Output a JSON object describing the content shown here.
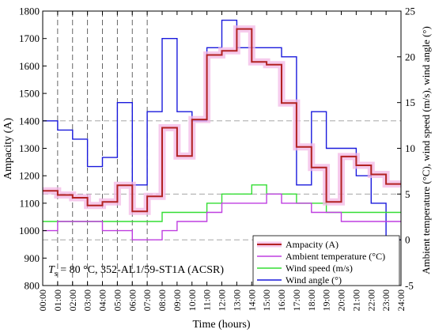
{
  "chart_data": {
    "type": "line",
    "xlabel": "Time (hours)",
    "ylabel_left": "Ampacity (A)",
    "ylabel_right": "Ambient temperature (°C), wind speed (m/s), wind angle (°)",
    "x_ticks": [
      "00:00",
      "01:00",
      "02:00",
      "03:00",
      "04:00",
      "05:00",
      "06:00",
      "07:00",
      "08:00",
      "09:00",
      "10:00",
      "11:00",
      "12:00",
      "13:00",
      "14:00",
      "15:00",
      "16:00",
      "17:00",
      "18:00",
      "19:00",
      "20:00",
      "21:00",
      "22:00",
      "23:00",
      "24:00"
    ],
    "xlim": [
      0,
      24
    ],
    "ylim_left": [
      800,
      1800
    ],
    "ylim_right": [
      -5,
      25
    ],
    "y_ticks_left": [
      800,
      900,
      1000,
      1100,
      1200,
      1300,
      1400,
      1500,
      1600,
      1700,
      1800
    ],
    "y_ticks_right": [
      -5,
      0,
      5,
      10,
      15,
      20,
      25
    ],
    "annotation": {
      "prefix": "T",
      "subscript": "s",
      "text": " = 80 °C, 352-AL1/59-ST1A (ACSR)"
    },
    "legend_position": "bottom-right",
    "dashed_vertical_at": [
      1,
      2,
      3,
      4,
      5,
      6,
      7
    ],
    "dashed_horizontal_right_at": [
      0,
      5,
      13
    ],
    "series": [
      {
        "name": "Ampacity (A)",
        "axis": "left",
        "color": "#b22222",
        "band_color": "#f3b8e6",
        "values": [
          1145,
          1130,
          1120,
          1092,
          1105,
          1165,
          1070,
          1125,
          1375,
          1272,
          1405,
          1640,
          1655,
          1735,
          1615,
          1605,
          1465,
          1305,
          1230,
          1105,
          1270,
          1238,
          1205,
          1170
        ]
      },
      {
        "name": "Ambient temperature (°C)",
        "axis": "right",
        "color": "#bf3fe0",
        "values": [
          1,
          2,
          2,
          2,
          1,
          1,
          0,
          0,
          1,
          2,
          2,
          3,
          4,
          4,
          4,
          5,
          4,
          4,
          3,
          3,
          2,
          2,
          2,
          2
        ]
      },
      {
        "name": "Wind speed (m/s)",
        "axis": "right",
        "color": "#33dd33",
        "values": [
          2,
          2,
          2,
          2,
          2,
          2,
          2,
          2,
          3,
          3,
          3,
          4,
          5,
          5,
          6,
          5,
          5,
          4,
          4,
          3,
          3,
          3,
          3,
          3
        ]
      },
      {
        "name": "Wind angle (°)",
        "axis": "right",
        "color": "#1a1adc",
        "values": [
          13,
          12,
          11,
          8,
          9,
          15,
          6,
          14,
          22,
          14,
          13,
          21,
          24,
          21,
          21,
          21,
          20,
          6,
          14,
          10,
          10,
          7,
          4,
          0
        ]
      }
    ]
  }
}
